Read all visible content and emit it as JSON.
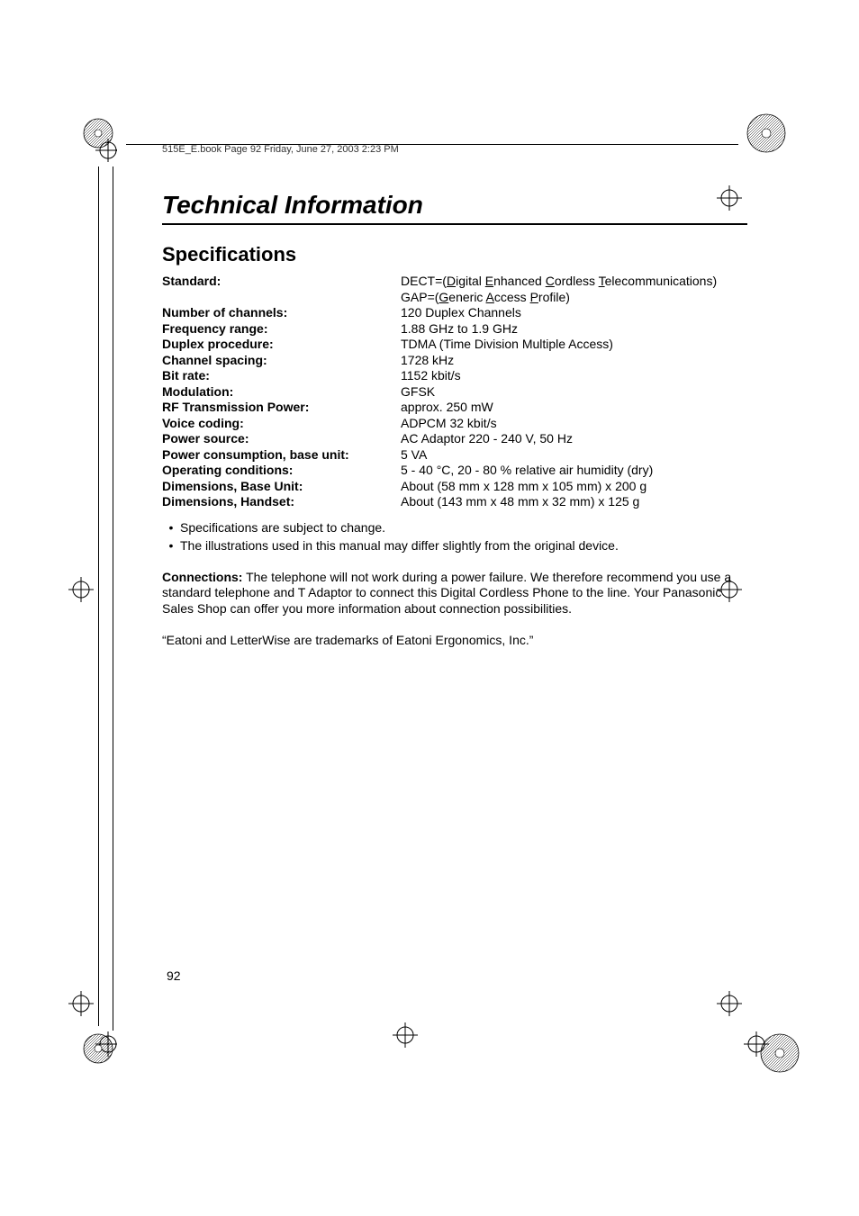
{
  "header": {
    "text": "515E_E.book  Page 92  Friday, June 27, 2003  2:23 PM"
  },
  "title": "Technical Information",
  "section_title": "Specifications",
  "specs": [
    {
      "label": "Standard:",
      "value_html": "DECT=(<u>D</u>igital <u>E</u>nhanced <u>C</u>ordless <u>T</u>elecommunications)"
    },
    {
      "label": "",
      "value_html": "GAP=(<u>G</u>eneric <u>A</u>ccess <u>P</u>rofile)"
    },
    {
      "label": "Number of channels:",
      "value": "120 Duplex Channels"
    },
    {
      "label": "Frequency range:",
      "value": "1.88 GHz to 1.9 GHz"
    },
    {
      "label": "Duplex procedure:",
      "value": "TDMA (Time Division Multiple Access)"
    },
    {
      "label": "Channel spacing:",
      "value": "1728 kHz"
    },
    {
      "label": "Bit rate:",
      "value": "1152 kbit/s"
    },
    {
      "label": "Modulation:",
      "value": "GFSK"
    },
    {
      "label": "RF Transmission Power:",
      "value": "approx. 250 mW"
    },
    {
      "label": "Voice coding:",
      "value": "ADPCM 32 kbit/s"
    },
    {
      "label": "Power source:",
      "value": "AC Adaptor 220 - 240 V, 50 Hz"
    },
    {
      "label": "Power consumption, base unit:",
      "value": "5 VA"
    },
    {
      "label": "Operating conditions:",
      "value": "5 - 40 °C, 20 - 80 % relative air humidity (dry)"
    },
    {
      "label": "Dimensions, Base Unit:",
      "value": "About (58 mm x 128 mm x 105 mm) x 200 g"
    },
    {
      "label": "Dimensions, Handset:",
      "value": "About (143 mm x 48 mm x 32 mm) x 125 g"
    }
  ],
  "bullets": [
    "Specifications are subject to change.",
    "The illustrations used in this manual may differ slightly from the original device."
  ],
  "connections": {
    "label": "Connections:",
    "text": " The telephone will not work during a power failure. We therefore recommend you use a standard telephone and T Adaptor to connect this Digital Cordless Phone to the line. Your Panasonic Sales Shop can offer you more information about connection possibilities."
  },
  "trademark": "“Eatoni and LetterWise are trademarks of Eatoni Ergonomics, Inc.”",
  "page_number": "92"
}
